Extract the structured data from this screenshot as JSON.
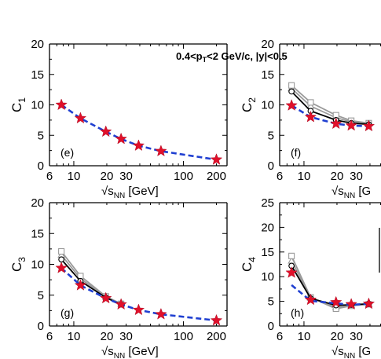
{
  "annotation": {
    "prefix": "0.4<p",
    "sub1": "T",
    "mid": "<2 GeV/c, |y|<0.5"
  },
  "colors": {
    "dashed": "#1f3fd1",
    "star": "#e0102a",
    "solid": "#000000",
    "gray": "#9a9a9a"
  },
  "chart_data": [
    {
      "type": "line",
      "panel_label": "(e)",
      "ylabel_main": "C",
      "ylabel_sub": "1",
      "xlabel_main": "√s",
      "xlabel_sub": "NN",
      "xlabel_unit": " [GeV]",
      "x_scale": "log",
      "xlim": [
        6,
        250
      ],
      "ylim": [
        0,
        20
      ],
      "xticks": [
        6,
        10,
        20,
        30,
        100,
        200
      ],
      "yticks": [
        0,
        5,
        10,
        15,
        20
      ],
      "stars": {
        "x": [
          7.7,
          11.5,
          19.6,
          27,
          39,
          62.4,
          200
        ],
        "y": [
          10.0,
          7.8,
          5.6,
          4.4,
          3.3,
          2.4,
          1.0
        ]
      },
      "dashed": {
        "x": [
          7.7,
          11.5,
          19.6,
          27,
          39,
          62.4,
          200
        ],
        "y": [
          10.0,
          7.8,
          5.6,
          4.4,
          3.3,
          2.4,
          1.0
        ]
      },
      "solid": [],
      "gray": []
    },
    {
      "type": "line",
      "panel_label": "(f)",
      "ylabel_main": "C",
      "ylabel_sub": "2",
      "xlabel_main": "√s",
      "xlabel_sub": "NN",
      "xlabel_unit": " [G",
      "x_scale": "log",
      "xlim": [
        6,
        250
      ],
      "ylim": [
        0,
        20
      ],
      "xticks": [
        6,
        10,
        20,
        30
      ],
      "yticks": [
        0,
        5,
        10,
        15,
        20
      ],
      "stars": {
        "x": [
          7.7,
          11.5,
          19.6,
          27,
          39
        ],
        "y": [
          9.9,
          8.0,
          6.9,
          6.6,
          6.5
        ]
      },
      "dashed": {
        "x": [
          7.7,
          11.5,
          19.6,
          27,
          39
        ],
        "y": [
          9.9,
          8.0,
          6.9,
          6.6,
          6.5
        ]
      },
      "solid": [
        {
          "x": [
            7.7,
            11.5,
            19.6,
            27,
            39
          ],
          "y": [
            12.2,
            9.0,
            7.5,
            7.0,
            6.8
          ]
        }
      ],
      "gray": [
        {
          "x": [
            7.7,
            11.5,
            19.6,
            27,
            39
          ],
          "y": [
            12.7,
            9.8,
            7.9,
            7.2,
            6.9
          ]
        },
        {
          "x": [
            7.7,
            11.5,
            19.6,
            27,
            39
          ],
          "y": [
            13.2,
            10.4,
            8.3,
            7.4,
            7.0
          ]
        }
      ]
    },
    {
      "type": "line",
      "panel_label": "(g)",
      "ylabel_main": "C",
      "ylabel_sub": "3",
      "xlabel_main": "√s",
      "xlabel_sub": "NN",
      "xlabel_unit": " [GeV]",
      "x_scale": "log",
      "xlim": [
        6,
        250
      ],
      "ylim": [
        0,
        20
      ],
      "xticks": [
        6,
        10,
        20,
        30,
        100,
        200
      ],
      "yticks": [
        0,
        5,
        10,
        15,
        20
      ],
      "stars": {
        "x": [
          7.7,
          11.5,
          19.6,
          27,
          39,
          62.4,
          200
        ],
        "y": [
          9.4,
          6.6,
          4.5,
          3.5,
          2.6,
          1.9,
          0.9
        ]
      },
      "dashed": {
        "x": [
          7.7,
          11.5,
          19.6,
          27,
          39,
          62.4,
          200
        ],
        "y": [
          9.4,
          6.6,
          4.5,
          3.5,
          2.6,
          1.9,
          0.9
        ]
      },
      "solid": [
        {
          "x": [
            7.7,
            11.5,
            19.6,
            27
          ],
          "y": [
            10.8,
            7.3,
            4.6,
            3.5
          ]
        }
      ],
      "gray": [
        {
          "x": [
            7.7,
            11.5,
            19.6,
            27
          ],
          "y": [
            11.5,
            7.7,
            4.7,
            3.6
          ]
        },
        {
          "x": [
            7.7,
            11.5,
            19.6,
            27
          ],
          "y": [
            12.1,
            8.1,
            4.8,
            3.6
          ]
        }
      ]
    },
    {
      "type": "line",
      "panel_label": "(h)",
      "ylabel_main": "C",
      "ylabel_sub": "4",
      "xlabel_main": "√s",
      "xlabel_sub": "NN",
      "xlabel_unit": " [G",
      "x_scale": "log",
      "xlim": [
        6,
        250
      ],
      "ylim": [
        0,
        25
      ],
      "xticks": [
        6,
        10,
        20,
        30
      ],
      "yticks": [
        0,
        5,
        10,
        15,
        20,
        25
      ],
      "stars": {
        "x": [
          7.7,
          11.5,
          19.6,
          27,
          39
        ],
        "y": [
          10.8,
          5.3,
          4.8,
          4.4,
          4.5
        ]
      },
      "dashed": {
        "x": [
          7.7,
          11.5,
          19.6,
          27,
          39
        ],
        "y": [
          8.3,
          5.1,
          4.6,
          4.3,
          4.5
        ]
      },
      "solid": [
        {
          "x": [
            7.7,
            11.5,
            19.6,
            27,
            39
          ],
          "y": [
            12.2,
            5.6,
            4.2,
            4.3,
            4.5
          ]
        }
      ],
      "gray": [
        {
          "x": [
            7.7,
            11.5,
            19.6,
            27,
            39
          ],
          "y": [
            13.2,
            5.7,
            3.8,
            4.2,
            4.4
          ]
        },
        {
          "x": [
            7.7,
            11.5,
            19.6,
            27,
            39
          ],
          "y": [
            14.2,
            5.8,
            3.5,
            4.1,
            4.4
          ]
        }
      ]
    }
  ]
}
